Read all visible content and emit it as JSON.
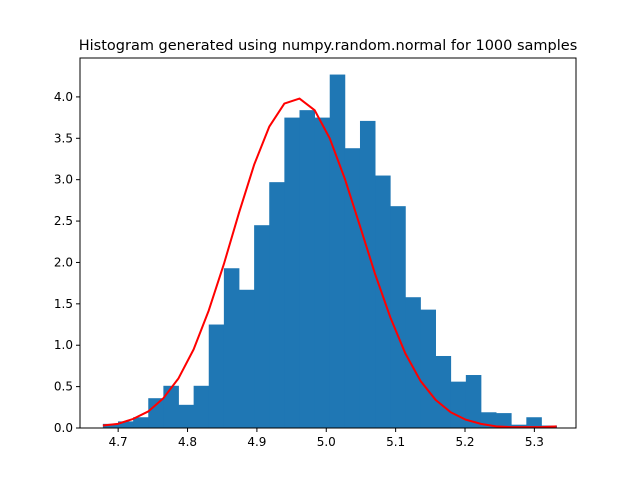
{
  "chart_data": {
    "type": "bar",
    "title": "Histogram generated using numpy.random.normal for 1000 samples",
    "xlabel": "",
    "ylabel": "",
    "xlim": [
      4.645,
      5.36
    ],
    "ylim": [
      0,
      4.47
    ],
    "xticks": [
      4.7,
      4.8,
      4.9,
      5.0,
      5.1,
      5.2,
      5.3
    ],
    "xtick_labels": [
      "4.7",
      "4.8",
      "4.9",
      "5.0",
      "5.1",
      "5.2",
      "5.3"
    ],
    "yticks": [
      0.0,
      0.5,
      1.0,
      1.5,
      2.0,
      2.5,
      3.0,
      3.5,
      4.0
    ],
    "ytick_labels": [
      "0.0",
      "0.5",
      "1.0",
      "1.5",
      "2.0",
      "2.5",
      "3.0",
      "3.5",
      "4.0"
    ],
    "grid": false,
    "bar_color": "#1f77b4",
    "curve_color": "#ff0000",
    "bins": {
      "edges": [
        4.678,
        4.6998,
        4.7216,
        4.7434,
        4.7652,
        4.787,
        4.8088,
        4.8306,
        4.8524,
        4.8742,
        4.896,
        4.9178,
        4.9396,
        4.9614,
        4.9832,
        5.005,
        5.0268,
        5.0486,
        5.0704,
        5.0922,
        5.114,
        5.1358,
        5.1576,
        5.1794,
        5.2012,
        5.223,
        5.2448,
        5.2666,
        5.2884,
        5.3102,
        5.332
      ],
      "heights": [
        0.05,
        0.08,
        0.13,
        0.36,
        0.51,
        0.28,
        0.51,
        1.25,
        1.93,
        1.67,
        2.45,
        2.97,
        3.75,
        3.84,
        3.75,
        4.27,
        3.38,
        3.71,
        3.05,
        2.68,
        1.58,
        1.43,
        0.87,
        0.56,
        0.64,
        0.19,
        0.18,
        0.04,
        0.13,
        0.03
      ]
    },
    "series": [
      {
        "type": "line",
        "x": [
          4.678,
          4.6998,
          4.7216,
          4.7434,
          4.7652,
          4.787,
          4.8088,
          4.8306,
          4.8524,
          4.8742,
          4.896,
          4.9178,
          4.9396,
          4.9614,
          4.9832,
          5.005,
          5.0268,
          5.0486,
          5.0704,
          5.0922,
          5.114,
          5.1358,
          5.1576,
          5.1794,
          5.2012,
          5.223,
          5.2448,
          5.2666,
          5.2884,
          5.3102,
          5.332
        ],
        "y": [
          0.03,
          0.05,
          0.11,
          0.2,
          0.36,
          0.6,
          0.95,
          1.42,
          1.98,
          2.6,
          3.18,
          3.64,
          3.92,
          3.98,
          3.84,
          3.5,
          3.01,
          2.44,
          1.86,
          1.34,
          0.9,
          0.57,
          0.34,
          0.19,
          0.1,
          0.05,
          0.02,
          0.01,
          0.01,
          0.01,
          0.02
        ]
      }
    ]
  }
}
